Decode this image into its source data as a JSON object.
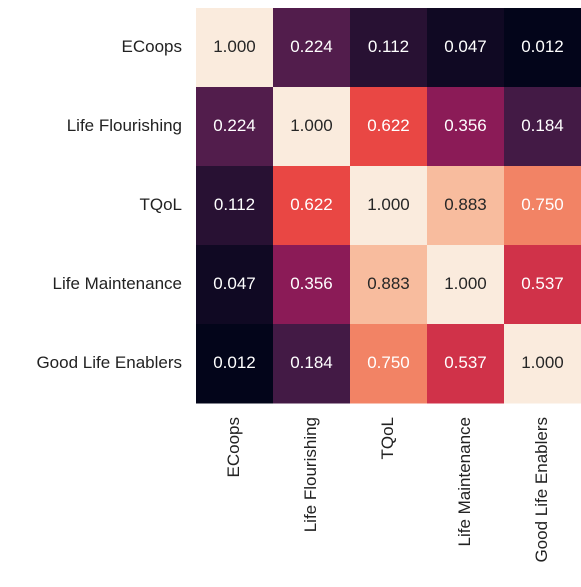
{
  "chart_data": {
    "type": "heatmap",
    "colormap": "rocket",
    "rows": [
      "ECoops",
      "Life Flourishing",
      "TQoL",
      "Life Maintenance",
      "Good Life Enablers"
    ],
    "columns": [
      "ECoops",
      "Life Flourishing",
      "TQoL",
      "Life Maintenance",
      "Good Life Enablers"
    ],
    "values": [
      [
        1,
        0.224,
        0.112,
        0.047,
        0.012
      ],
      [
        0.224,
        1,
        0.622,
        0.356,
        0.184
      ],
      [
        0.112,
        0.622,
        1,
        0.883,
        0.75
      ],
      [
        0.047,
        0.356,
        0.883,
        1,
        0.537
      ],
      [
        0.012,
        0.184,
        0.75,
        0.537,
        1
      ]
    ],
    "value_labels": [
      [
        "1.000",
        "0.224",
        "0.112",
        "0.047",
        "0.012"
      ],
      [
        "0.224",
        "1.000",
        "0.622",
        "0.356",
        "0.184"
      ],
      [
        "0.112",
        "0.622",
        "1.000",
        "0.883",
        "0.750"
      ],
      [
        "0.047",
        "0.356",
        "0.883",
        "1.000",
        "0.537"
      ],
      [
        "0.012",
        "0.184",
        "0.750",
        "0.537",
        "1.000"
      ]
    ]
  }
}
